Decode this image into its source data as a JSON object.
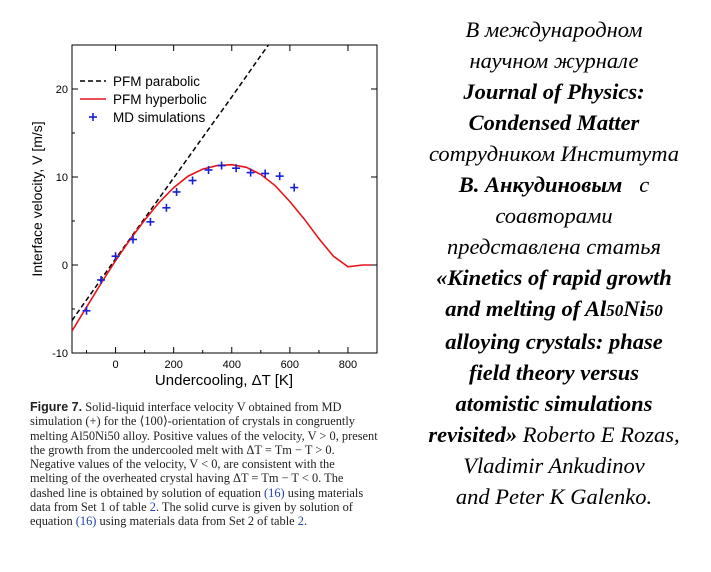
{
  "chart_data": {
    "type": "line",
    "xlabel": "Undercooling,  ΔT [K]",
    "ylabel": "Interface velocity,  V [m/s]",
    "xlim": [
      -150,
      900
    ],
    "ylim": [
      -10,
      25
    ],
    "xticks": [
      0,
      200,
      400,
      600,
      800
    ],
    "yticks": [
      -10,
      0,
      10,
      20
    ],
    "legend_position": "top-left",
    "series": [
      {
        "name": "PFM parabolic",
        "style": "dashed",
        "color": "#000000",
        "x": [
          -150,
          0,
          100,
          200,
          300,
          400,
          500,
          600
        ],
        "y": [
          -6.3,
          0.7,
          5.3,
          9.9,
          14.5,
          19.1,
          23.8,
          28.4
        ]
      },
      {
        "name": "PFM hyperbolic",
        "style": "solid",
        "color": "#e8141a",
        "x": [
          -150,
          -100,
          -50,
          0,
          50,
          100,
          150,
          200,
          250,
          300,
          350,
          400,
          450,
          500,
          550,
          600,
          650,
          700,
          750,
          800,
          850,
          880
        ],
        "y": [
          -7.5,
          -4.8,
          -2.1,
          0.5,
          2.9,
          5.1,
          7.1,
          8.8,
          10.1,
          10.9,
          11.3,
          11.4,
          11.1,
          10.3,
          9.0,
          7.2,
          5.2,
          3.0,
          1.0,
          -0.2,
          0.0,
          0.0
        ]
      },
      {
        "name": "MD simulations",
        "style": "markers",
        "marker": "+",
        "color": "#1520d8",
        "x": [
          -100,
          -50,
          0,
          60,
          120,
          175,
          210,
          265,
          320,
          365,
          415,
          465,
          515,
          565,
          615
        ],
        "y": [
          -5.2,
          -1.7,
          1.0,
          2.9,
          4.9,
          6.5,
          8.3,
          9.6,
          10.8,
          11.3,
          11.0,
          10.5,
          10.4,
          10.1,
          8.8
        ]
      }
    ]
  },
  "caption": {
    "label": "Figure 7.",
    "l1": "Solid-liquid interface velocity V obtained from MD",
    "l2a": "simulation (+) for the ⟨100⟩-orientation of crystals in congruently",
    "l3": "melting Al50Ni50 alloy. Positive values of the velocity, V > 0, present",
    "l4": "the growth from the undercooled melt with ΔT = Tm − T > 0.",
    "l5": "Negative values of the velocity, V < 0, are consistent with the",
    "l6": "melting of the overheated crystal having ΔT = Tm − T < 0. The",
    "l7a": "dashed line is obtained by solution of equation",
    "eq16": "(16)",
    "l7b": "using materials",
    "l8a": "data from Set 1 of table",
    "t2": "2",
    "l8b": ". The solid curve is given by solution of",
    "l9a": "equation",
    "l9b": "using materials data from Set 2 of table",
    "l9c": "."
  },
  "article": {
    "l1": "В международном",
    "l2": "научном журнале",
    "l3": "Journal of Physics:",
    "l4": "Condensed Matter",
    "l5": "сотрудником Института",
    "l6a": "В. Анкудиновым",
    "l6b": "с",
    "l7": "соавторами",
    "l8": "представлена статья",
    "l9": "«Kinetics of rapid growth",
    "l10a": "and melting of Al",
    "l10b": "50",
    "l10c": "Ni",
    "l10d": "50",
    "l11": "alloying crystals: phase",
    "l12": "field theory versus",
    "l13": "atomistic simulations",
    "l14a": "revisited»",
    "l14b": "Roberto E Rozas,",
    "l15": "Vladimir Ankudinov",
    "l16": "and Peter K Galenko."
  }
}
